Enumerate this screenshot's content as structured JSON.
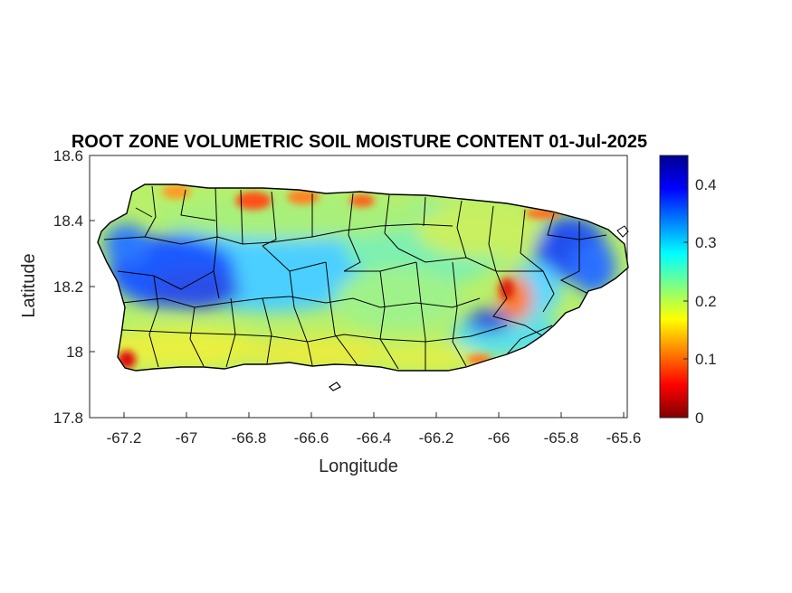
{
  "title": "ROOT ZONE VOLUMETRIC SOIL MOISTURE CONTENT 01-Jul-2025",
  "map": {
    "xlabel": "Longitude",
    "ylabel": "Latitude",
    "xlim": [
      -67.3,
      -65.58
    ],
    "ylim": [
      17.8,
      18.6
    ],
    "xticks": [
      "-67.2",
      "-67",
      "-66.8",
      "-66.6",
      "-66.4",
      "-66.2",
      "-66",
      "-65.8",
      "-65.6"
    ],
    "yticks": [
      "17.8",
      "18",
      "18.2",
      "18.4",
      "18.6"
    ],
    "region": "Puerto Rico",
    "boundary_color": "#000000"
  },
  "colorbar": {
    "colormap": "jet",
    "range": [
      0,
      0.45
    ],
    "ticks": [
      "0",
      "0.1",
      "0.2",
      "0.3",
      "0.4"
    ]
  }
}
